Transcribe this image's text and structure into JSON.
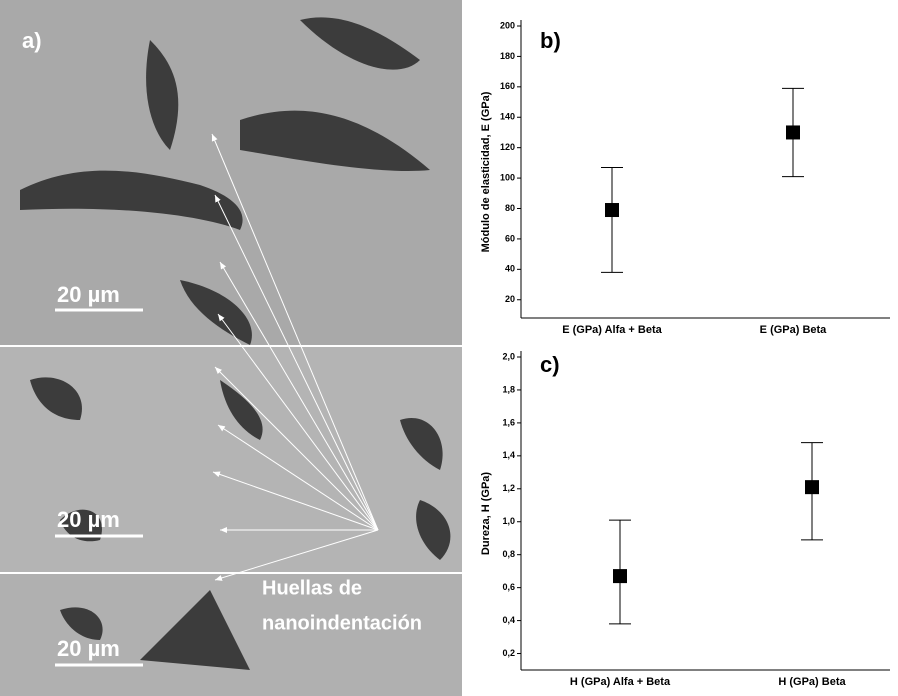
{
  "micrograph": {
    "panel_label": "a)",
    "scale_bars": [
      "20 µm",
      "20 µm",
      "20 µm"
    ],
    "annotation": [
      "Huellas de",
      "nanoindentación"
    ]
  },
  "chart_data": [
    {
      "type": "errorbar",
      "panel_label": "b)",
      "ylabel": "Módulo de elasticidad, E (GPa)",
      "categories": [
        "E (GPa) Alfa + Beta",
        "E (GPa) Beta"
      ],
      "values": [
        79,
        130
      ],
      "lower": [
        38,
        101
      ],
      "upper": [
        107,
        159
      ],
      "color": "#000000",
      "ylim": [
        8,
        200
      ],
      "yticks": [
        20,
        40,
        60,
        80,
        100,
        120,
        140,
        160,
        180,
        200
      ]
    },
    {
      "type": "errorbar",
      "panel_label": "c)",
      "ylabel": "Dureza, H (GPa)",
      "categories": [
        "H (GPa) Alfa + Beta",
        "H (GPa) Beta"
      ],
      "values": [
        0.67,
        1.21
      ],
      "lower": [
        0.38,
        0.89
      ],
      "upper": [
        1.01,
        1.48
      ],
      "color": "#000000",
      "ylim": [
        0.1,
        2.0
      ],
      "yticks": [
        {
          "value": 0.2,
          "label": "0,2"
        },
        {
          "value": 0.4,
          "label": "0,4"
        },
        {
          "value": 0.6,
          "label": "0,6"
        },
        {
          "value": 0.8,
          "label": "0,8"
        },
        {
          "value": 1.0,
          "label": "1,0"
        },
        {
          "value": 1.2,
          "label": "1,2"
        },
        {
          "value": 1.4,
          "label": "1,4"
        },
        {
          "value": 1.6,
          "label": "1,6"
        },
        {
          "value": 1.8,
          "label": "1,8"
        },
        {
          "value": 2.0,
          "label": "2,0"
        }
      ]
    }
  ]
}
